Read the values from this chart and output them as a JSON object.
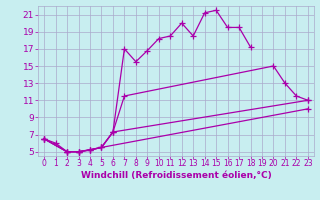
{
  "background_color": "#c8eef0",
  "grid_color": "#aaaacc",
  "line_color": "#aa00aa",
  "marker": "+",
  "markersize": 4,
  "linewidth": 0.9,
  "xlabel": "Windchill (Refroidissement éolien,°C)",
  "xlabel_color": "#aa00aa",
  "xlabel_fontsize": 6.5,
  "ytick_fontsize": 6.5,
  "xtick_fontsize": 5.5,
  "ylim": [
    4.5,
    22.0
  ],
  "xlim": [
    -0.5,
    23.5
  ],
  "yticks": [
    5,
    7,
    9,
    11,
    13,
    15,
    17,
    19,
    21
  ],
  "xticks": [
    0,
    1,
    2,
    3,
    4,
    5,
    6,
    7,
    8,
    9,
    10,
    11,
    12,
    13,
    14,
    15,
    16,
    17,
    18,
    19,
    20,
    21,
    22,
    23
  ],
  "series1_x": [
    0,
    1,
    2,
    3,
    4,
    5,
    6,
    7,
    8,
    9,
    10,
    11,
    12,
    13,
    14,
    15,
    16,
    17,
    18
  ],
  "series1_y": [
    6.5,
    6.0,
    5.0,
    5.0,
    5.2,
    5.5,
    7.3,
    17.0,
    15.5,
    16.8,
    18.2,
    18.5,
    20.0,
    18.5,
    21.2,
    21.5,
    19.5,
    19.5,
    17.2
  ],
  "series2_x": [
    0,
    2,
    3,
    4,
    5,
    6,
    7,
    20,
    21,
    22,
    23
  ],
  "series2_y": [
    6.5,
    5.0,
    5.0,
    5.2,
    5.5,
    7.3,
    11.5,
    15.0,
    13.0,
    11.5,
    11.0
  ],
  "series3_x": [
    0,
    2,
    3,
    4,
    5,
    6,
    23
  ],
  "series3_y": [
    6.5,
    5.0,
    5.0,
    5.2,
    5.5,
    7.3,
    11.0
  ],
  "series4_x": [
    0,
    2,
    3,
    23
  ],
  "series4_y": [
    6.5,
    5.0,
    5.0,
    10.0
  ]
}
